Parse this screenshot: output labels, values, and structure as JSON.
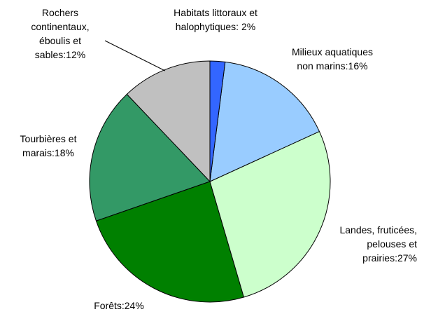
{
  "chart_data": {
    "type": "pie",
    "values": [
      2,
      16,
      27,
      24,
      18,
      12
    ],
    "value_labels": [
      "Habitats littoraux et halophytiques: 2%",
      "Milieux aquatiques non marins:16%",
      "Landes, fruticées, pelouses et prairies:27%",
      "Forêts:24%",
      "Tourbières et marais:18%",
      "Rochers continentaux, éboulis et sables:12%"
    ],
    "colors": [
      "#3366ff",
      "#99ccff",
      "#ccffcc",
      "#008000",
      "#339966",
      "#c0c0c0"
    ]
  }
}
